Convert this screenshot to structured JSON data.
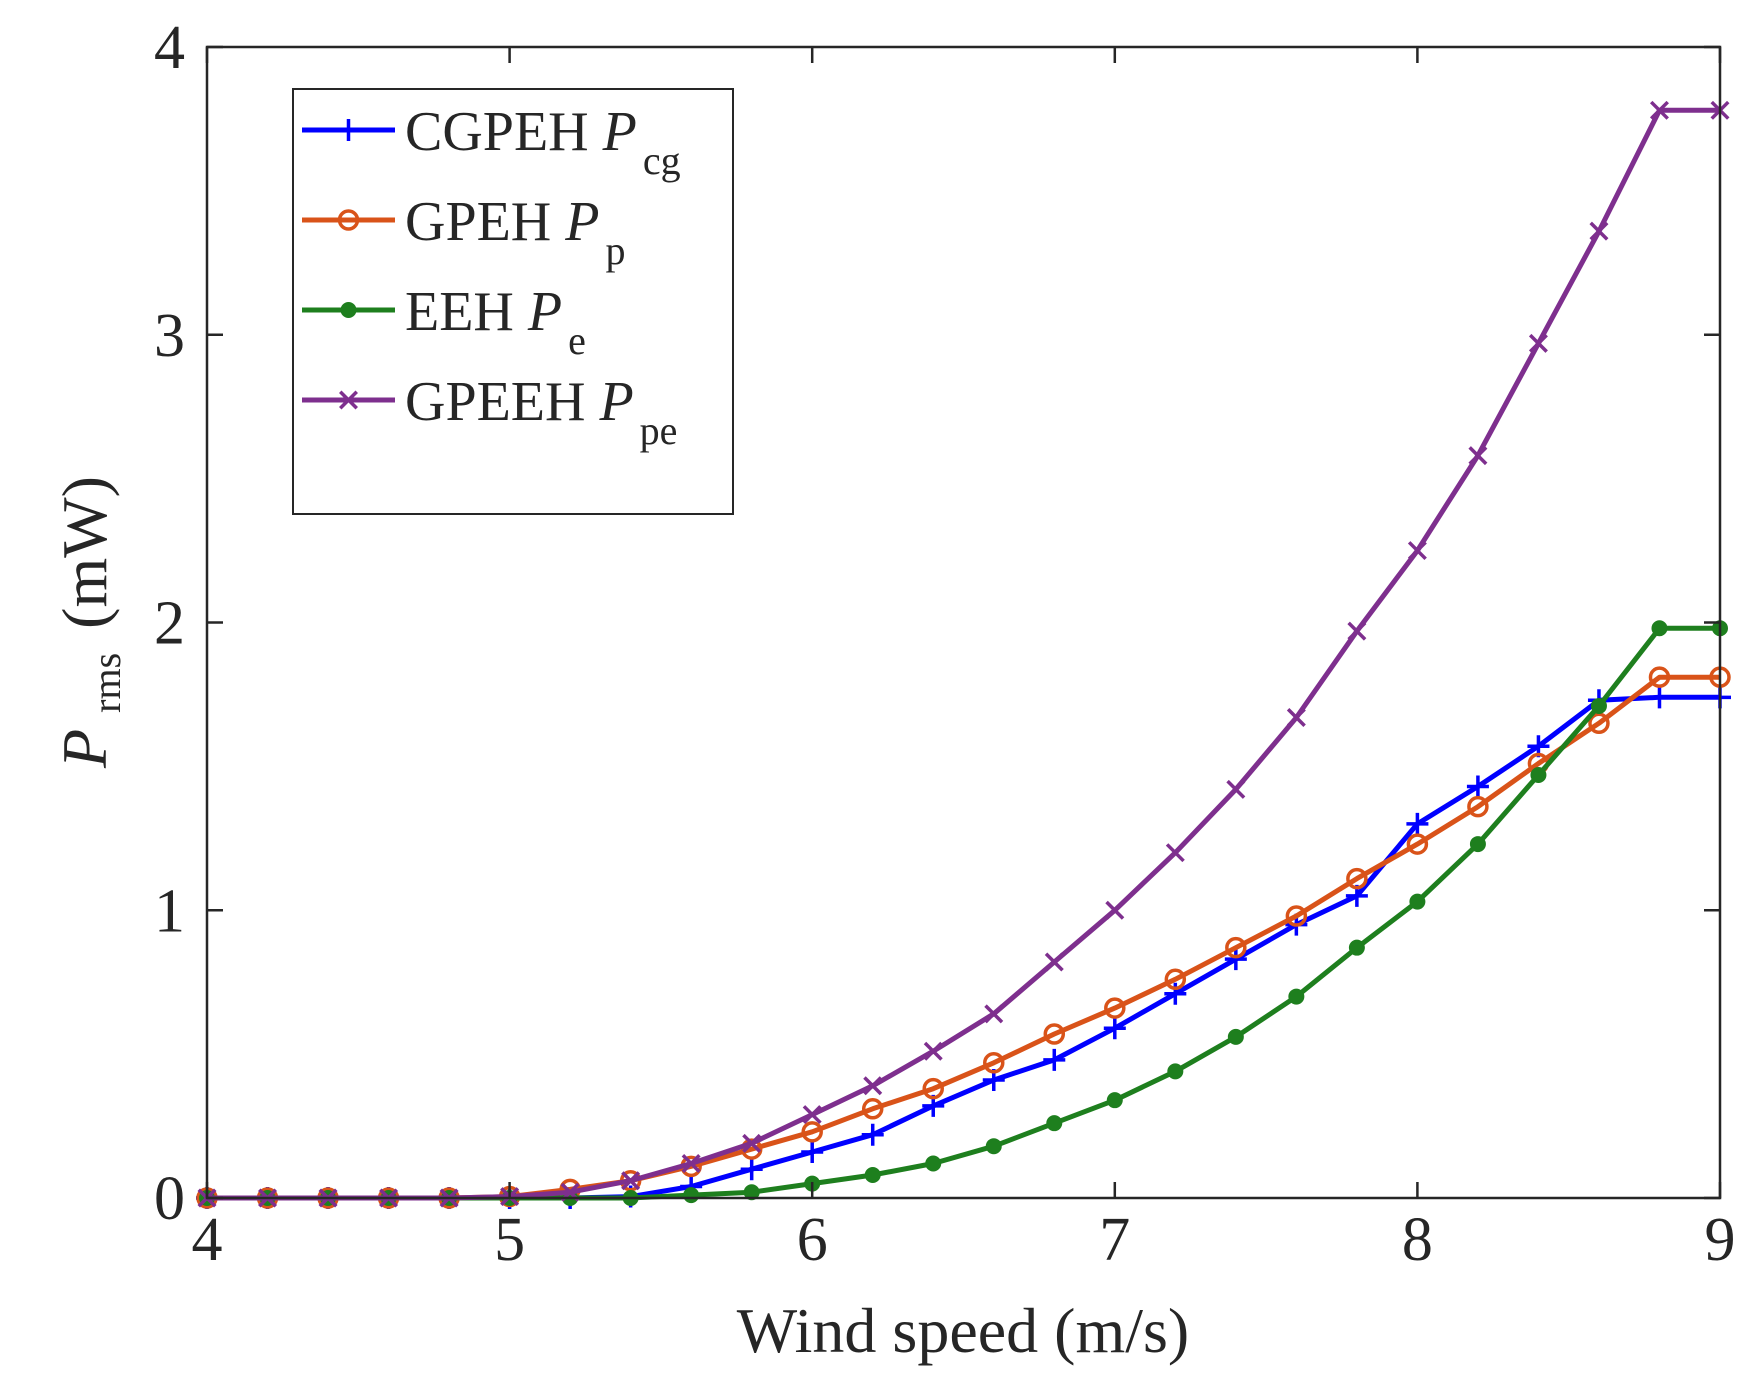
{
  "chart_data": {
    "type": "line",
    "title": "",
    "xlabel": "Wind speed (m/s)",
    "ylabel": {
      "main": "P",
      "sub": "rms",
      "unit": "(mW)"
    },
    "xlim": [
      4,
      9
    ],
    "ylim": [
      0,
      4
    ],
    "xticks": [
      4,
      5,
      6,
      7,
      8,
      9
    ],
    "yticks": [
      0,
      1,
      2,
      3,
      4
    ],
    "xtick_labels": [
      "4",
      "5",
      "6",
      "7",
      "8",
      "9"
    ],
    "ytick_labels": [
      "0",
      "1",
      "2",
      "3",
      "4"
    ],
    "grid": false,
    "legend_position": "top-left",
    "x": [
      4.0,
      4.2,
      4.4,
      4.6,
      4.8,
      5.0,
      5.2,
      5.4,
      5.6,
      5.8,
      6.0,
      6.2,
      6.4,
      6.6,
      6.8,
      7.0,
      7.2,
      7.4,
      7.6,
      7.8,
      8.0,
      8.2,
      8.4,
      8.6,
      8.8,
      9.0
    ],
    "series": [
      {
        "name": "CGPEH",
        "symbol": "P",
        "subscript": "cg",
        "color": "#0000ff",
        "marker": "plus",
        "values": [
          0,
          0,
          0,
          0,
          0,
          0,
          0,
          0.005,
          0.04,
          0.1,
          0.16,
          0.22,
          0.32,
          0.41,
          0.48,
          0.59,
          0.71,
          0.83,
          0.95,
          1.05,
          1.3,
          1.43,
          1.57,
          1.73,
          1.74,
          1.74
        ]
      },
      {
        "name": "GPEH",
        "symbol": "P",
        "subscript": "p",
        "color": "#d95319",
        "marker": "circle",
        "values": [
          0,
          0,
          0,
          0,
          0,
          0.005,
          0.03,
          0.06,
          0.11,
          0.17,
          0.23,
          0.31,
          0.38,
          0.47,
          0.57,
          0.66,
          0.76,
          0.87,
          0.98,
          1.11,
          1.23,
          1.36,
          1.51,
          1.65,
          1.81,
          1.81
        ]
      },
      {
        "name": "EEH",
        "symbol": "P",
        "subscript": "e",
        "color": "#1e7f1e",
        "marker": "asterisk",
        "values": [
          0,
          0,
          0,
          0,
          0,
          0,
          0,
          0,
          0.01,
          0.02,
          0.05,
          0.08,
          0.12,
          0.18,
          0.26,
          0.34,
          0.44,
          0.56,
          0.7,
          0.87,
          1.03,
          1.23,
          1.47,
          1.71,
          1.98,
          1.98
        ]
      },
      {
        "name": "GPEEH",
        "symbol": "P",
        "subscript": "pe",
        "color": "#7e2f8e",
        "marker": "x",
        "values": [
          0,
          0,
          0,
          0,
          0,
          0.005,
          0.02,
          0.06,
          0.12,
          0.19,
          0.29,
          0.39,
          0.51,
          0.64,
          0.82,
          1.0,
          1.2,
          1.42,
          1.67,
          1.97,
          2.25,
          2.58,
          2.97,
          3.36,
          3.78,
          3.78
        ]
      }
    ]
  }
}
